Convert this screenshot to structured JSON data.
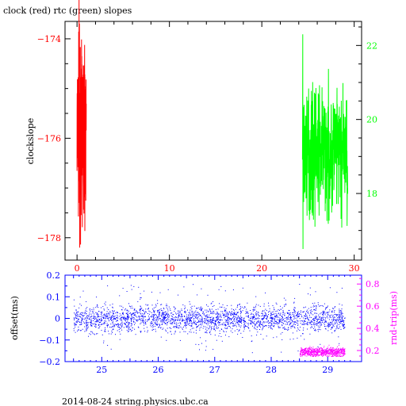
{
  "chart_data": [
    {
      "type": "line",
      "title": "clock (red) rtc (green) slopes",
      "ylabel": "clockslope",
      "xlim": [
        -1.3,
        30.8
      ],
      "xticks": [
        0,
        10,
        20,
        30
      ],
      "y_left": {
        "lim": [
          -178.45,
          -173.65
        ],
        "ticks": [
          -178,
          -176,
          -174
        ],
        "color": "#ff0000"
      },
      "y_right": {
        "lim": [
          16.2,
          22.65
        ],
        "ticks": [
          18,
          20,
          22
        ],
        "color": "#00ff00"
      },
      "series": [
        {
          "color": "#ff0000",
          "axis": "left",
          "x_range": [
            0.0,
            1.0
          ],
          "y_center": -175.9,
          "y_min": -178.2,
          "y_max": -172.8
        },
        {
          "color": "#00ff00",
          "axis": "right",
          "x_range": [
            24.4,
            29.3
          ],
          "y_center": 19.1,
          "y_min": 16.5,
          "y_max": 22.3
        }
      ]
    },
    {
      "type": "scatter",
      "ylabel": "offset(ms)",
      "y2label": "rnd-trip(ms)",
      "xlim": [
        24.35,
        29.6
      ],
      "xticks": [
        25,
        26,
        27,
        28,
        29
      ],
      "y_left": {
        "lim": [
          -0.2,
          0.2
        ],
        "ticks": [
          -0.2,
          -0.1,
          0,
          0.1,
          0.2
        ],
        "tick_labels": [
          "−0.2",
          "−0.1",
          "0",
          "0.1",
          "0.2"
        ],
        "color": "#0000ff"
      },
      "y_right": {
        "lim": [
          0.1,
          0.88
        ],
        "ticks": [
          0.2,
          0.4,
          0.6,
          0.8
        ],
        "color": "#ff00ff"
      },
      "series": [
        {
          "color": "#0000ff",
          "axis": "left",
          "x_range": [
            24.5,
            29.3
          ],
          "y_center": 0.0,
          "y_spread": 0.03
        },
        {
          "color": "#ff00ff",
          "axis": "right",
          "x_range": [
            28.5,
            29.3
          ],
          "y_center": 0.19,
          "y_spread": 0.02
        }
      ]
    }
  ],
  "footer": "2014-08-24 string.physics.ubc.ca"
}
